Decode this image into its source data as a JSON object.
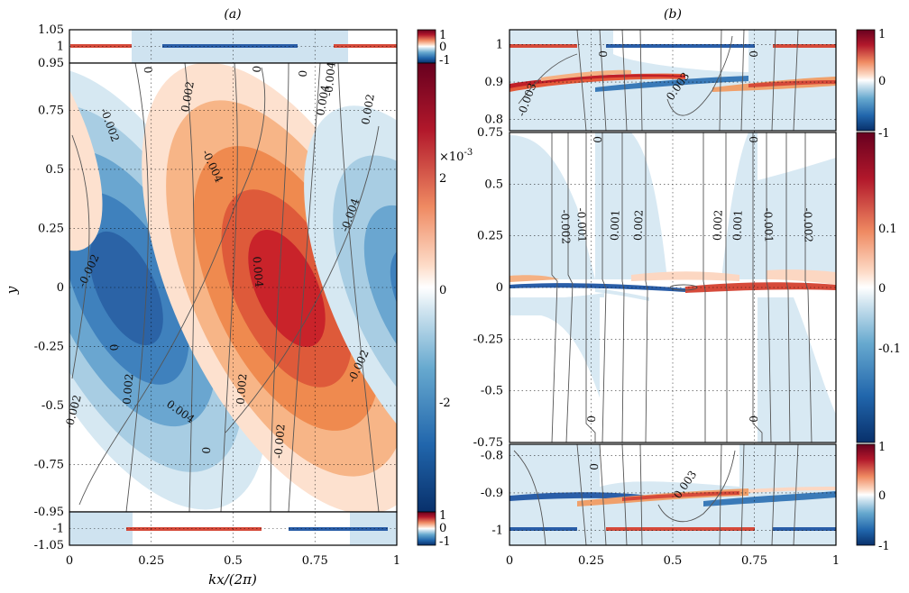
{
  "chart_data": [
    {
      "panel": "a",
      "type": "heatmap",
      "title": "(a)",
      "xlabel": "kx/(2π)",
      "ylabel": "y",
      "xlim": [
        0,
        1
      ],
      "ylim": [
        -1.05,
        1.05
      ],
      "x_ticks": [
        "0",
        "0.25",
        "0.5",
        "0.75",
        "1"
      ],
      "y_ticks": [
        "1.05",
        "1",
        "0.95",
        "0.75",
        "0.5",
        "0.25",
        "0",
        "-0.25",
        "-0.5",
        "-0.75",
        "-0.95",
        "-1",
        "-1.05"
      ],
      "y_tick_values": [
        1.05,
        1,
        0.95,
        0.75,
        0.5,
        0.25,
        0,
        -0.25,
        -0.5,
        -0.75,
        -0.95,
        -1,
        -1.05
      ],
      "sub_panels": [
        {
          "y_range": [
            0.95,
            1.05
          ],
          "colorbar_ticks": [
            "1",
            "0",
            "-1"
          ]
        },
        {
          "y_range": [
            -0.95,
            0.95
          ],
          "colorbar_ticks": [
            "2",
            "0",
            "-2"
          ],
          "colorbar_exponent": "×10",
          "colorbar_exponent_power": "-3"
        },
        {
          "y_range": [
            -1.05,
            -0.95
          ],
          "colorbar_ticks": [
            "1",
            "0",
            "-1"
          ]
        }
      ],
      "contour_labels": [
        "-0.002",
        "0.002",
        "-0.004",
        "0.004",
        "0",
        "-0.002",
        "0",
        "0.002",
        "0.004",
        "0",
        "-0.002",
        "-0.004",
        "-0.002",
        "0.002",
        "0.004",
        "0.002",
        "-0.002",
        "-0.004",
        "0",
        "0"
      ],
      "colormap": [
        "#08306b",
        "#2166ac",
        "#67a9cf",
        "#d1e5f0",
        "#ffffff",
        "#fddbc7",
        "#ef8a62",
        "#b2182b",
        "#67001f"
      ]
    },
    {
      "panel": "b",
      "type": "heatmap",
      "title": "(b)",
      "xlabel": "",
      "ylabel": "",
      "xlim": [
        0,
        1
      ],
      "x_ticks": [
        "0",
        "0.25",
        "0.5",
        "0.75",
        "1"
      ],
      "sub_panels": [
        {
          "y_range": [
            0.77,
            1.04
          ],
          "y_ticks": [
            "1",
            "0.9",
            "0.8"
          ],
          "y_tick_values": [
            1,
            0.9,
            0.8
          ],
          "colorbar_ticks": [
            "1",
            "0",
            "-1"
          ]
        },
        {
          "y_range": [
            -0.75,
            0.75
          ],
          "y_ticks": [
            "0.75",
            "0.5",
            "0.25",
            "0",
            "-0.25",
            "-0.5",
            "-0.75"
          ],
          "y_tick_values": [
            0.75,
            0.5,
            0.25,
            0,
            -0.25,
            -0.5,
            -0.75
          ],
          "colorbar_ticks": [
            "0.1",
            "0",
            "-0.1"
          ]
        },
        {
          "y_range": [
            -1.04,
            -0.77
          ],
          "y_ticks": [
            "-0.8",
            "-0.9",
            "-1"
          ],
          "y_tick_values": [
            -0.8,
            -0.9,
            -1
          ],
          "colorbar_ticks": [
            "1",
            "0",
            "-1"
          ]
        }
      ],
      "contour_labels": [
        "-0.003",
        "0",
        "0.003",
        "0",
        "0",
        "-0.002",
        "-0.001",
        "0.001",
        "0.002",
        "0.002",
        "0.001",
        "-0.001",
        "-0.002",
        "0",
        "0",
        "0",
        "0.003",
        "0"
      ]
    }
  ]
}
